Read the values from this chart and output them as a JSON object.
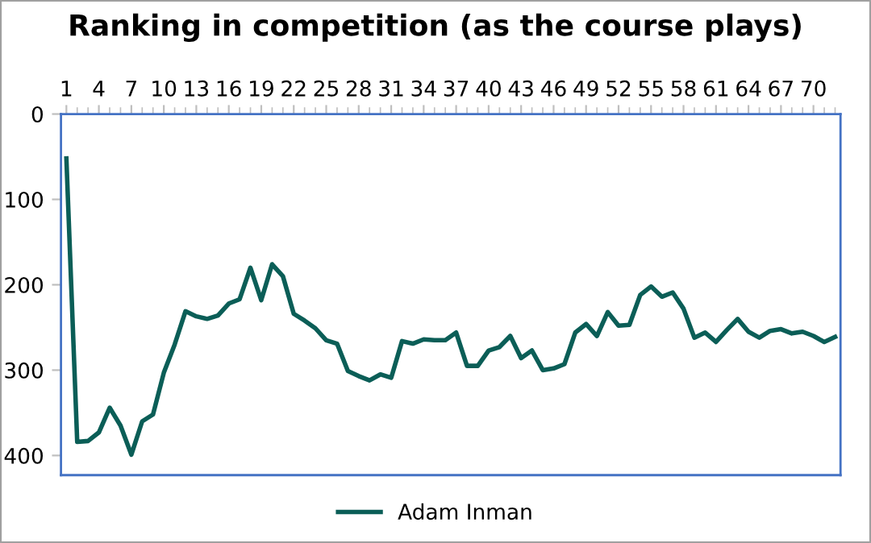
{
  "chart_data": {
    "type": "line",
    "title": "Ranking in competition (as the course plays)",
    "x": [
      1,
      2,
      3,
      4,
      5,
      6,
      7,
      8,
      9,
      10,
      11,
      12,
      13,
      14,
      15,
      16,
      17,
      18,
      19,
      20,
      21,
      22,
      23,
      24,
      25,
      26,
      27,
      28,
      29,
      30,
      31,
      32,
      33,
      34,
      35,
      36,
      37,
      38,
      39,
      40,
      41,
      42,
      43,
      44,
      45,
      46,
      47,
      48,
      49,
      50,
      51,
      52,
      53,
      54,
      55,
      56,
      57,
      58,
      59,
      60,
      61,
      62,
      63,
      64,
      65,
      66,
      67,
      68,
      69,
      70,
      71,
      72
    ],
    "series": [
      {
        "name": "Adam Inman",
        "color": "#0b5e57",
        "values": [
          52,
          384,
          383,
          373,
          344,
          365,
          399,
          360,
          352,
          303,
          270,
          231,
          237,
          240,
          236,
          222,
          217,
          180,
          218,
          176,
          190,
          234,
          242,
          251,
          265,
          269,
          301,
          307,
          312,
          305,
          309,
          266,
          269,
          264,
          265,
          265,
          256,
          295,
          295,
          277,
          273,
          260,
          286,
          277,
          300,
          298,
          293,
          256,
          246,
          260,
          232,
          248,
          247,
          212,
          202,
          214,
          209,
          228,
          262,
          256,
          267,
          253,
          240,
          255,
          262,
          254,
          252,
          257,
          255,
          260,
          267,
          261
        ]
      }
    ],
    "xlim": [
      0.5,
      72.5
    ],
    "xticks": [
      1,
      4,
      7,
      10,
      13,
      16,
      19,
      22,
      25,
      28,
      31,
      34,
      37,
      40,
      43,
      46,
      49,
      52,
      55,
      58,
      61,
      64,
      67,
      70
    ],
    "ylim": [
      423,
      0
    ],
    "yticks": [
      0,
      100,
      200,
      300,
      400
    ],
    "grid": false,
    "legend": "bottom",
    "marker": "none",
    "line_style": "solid"
  }
}
